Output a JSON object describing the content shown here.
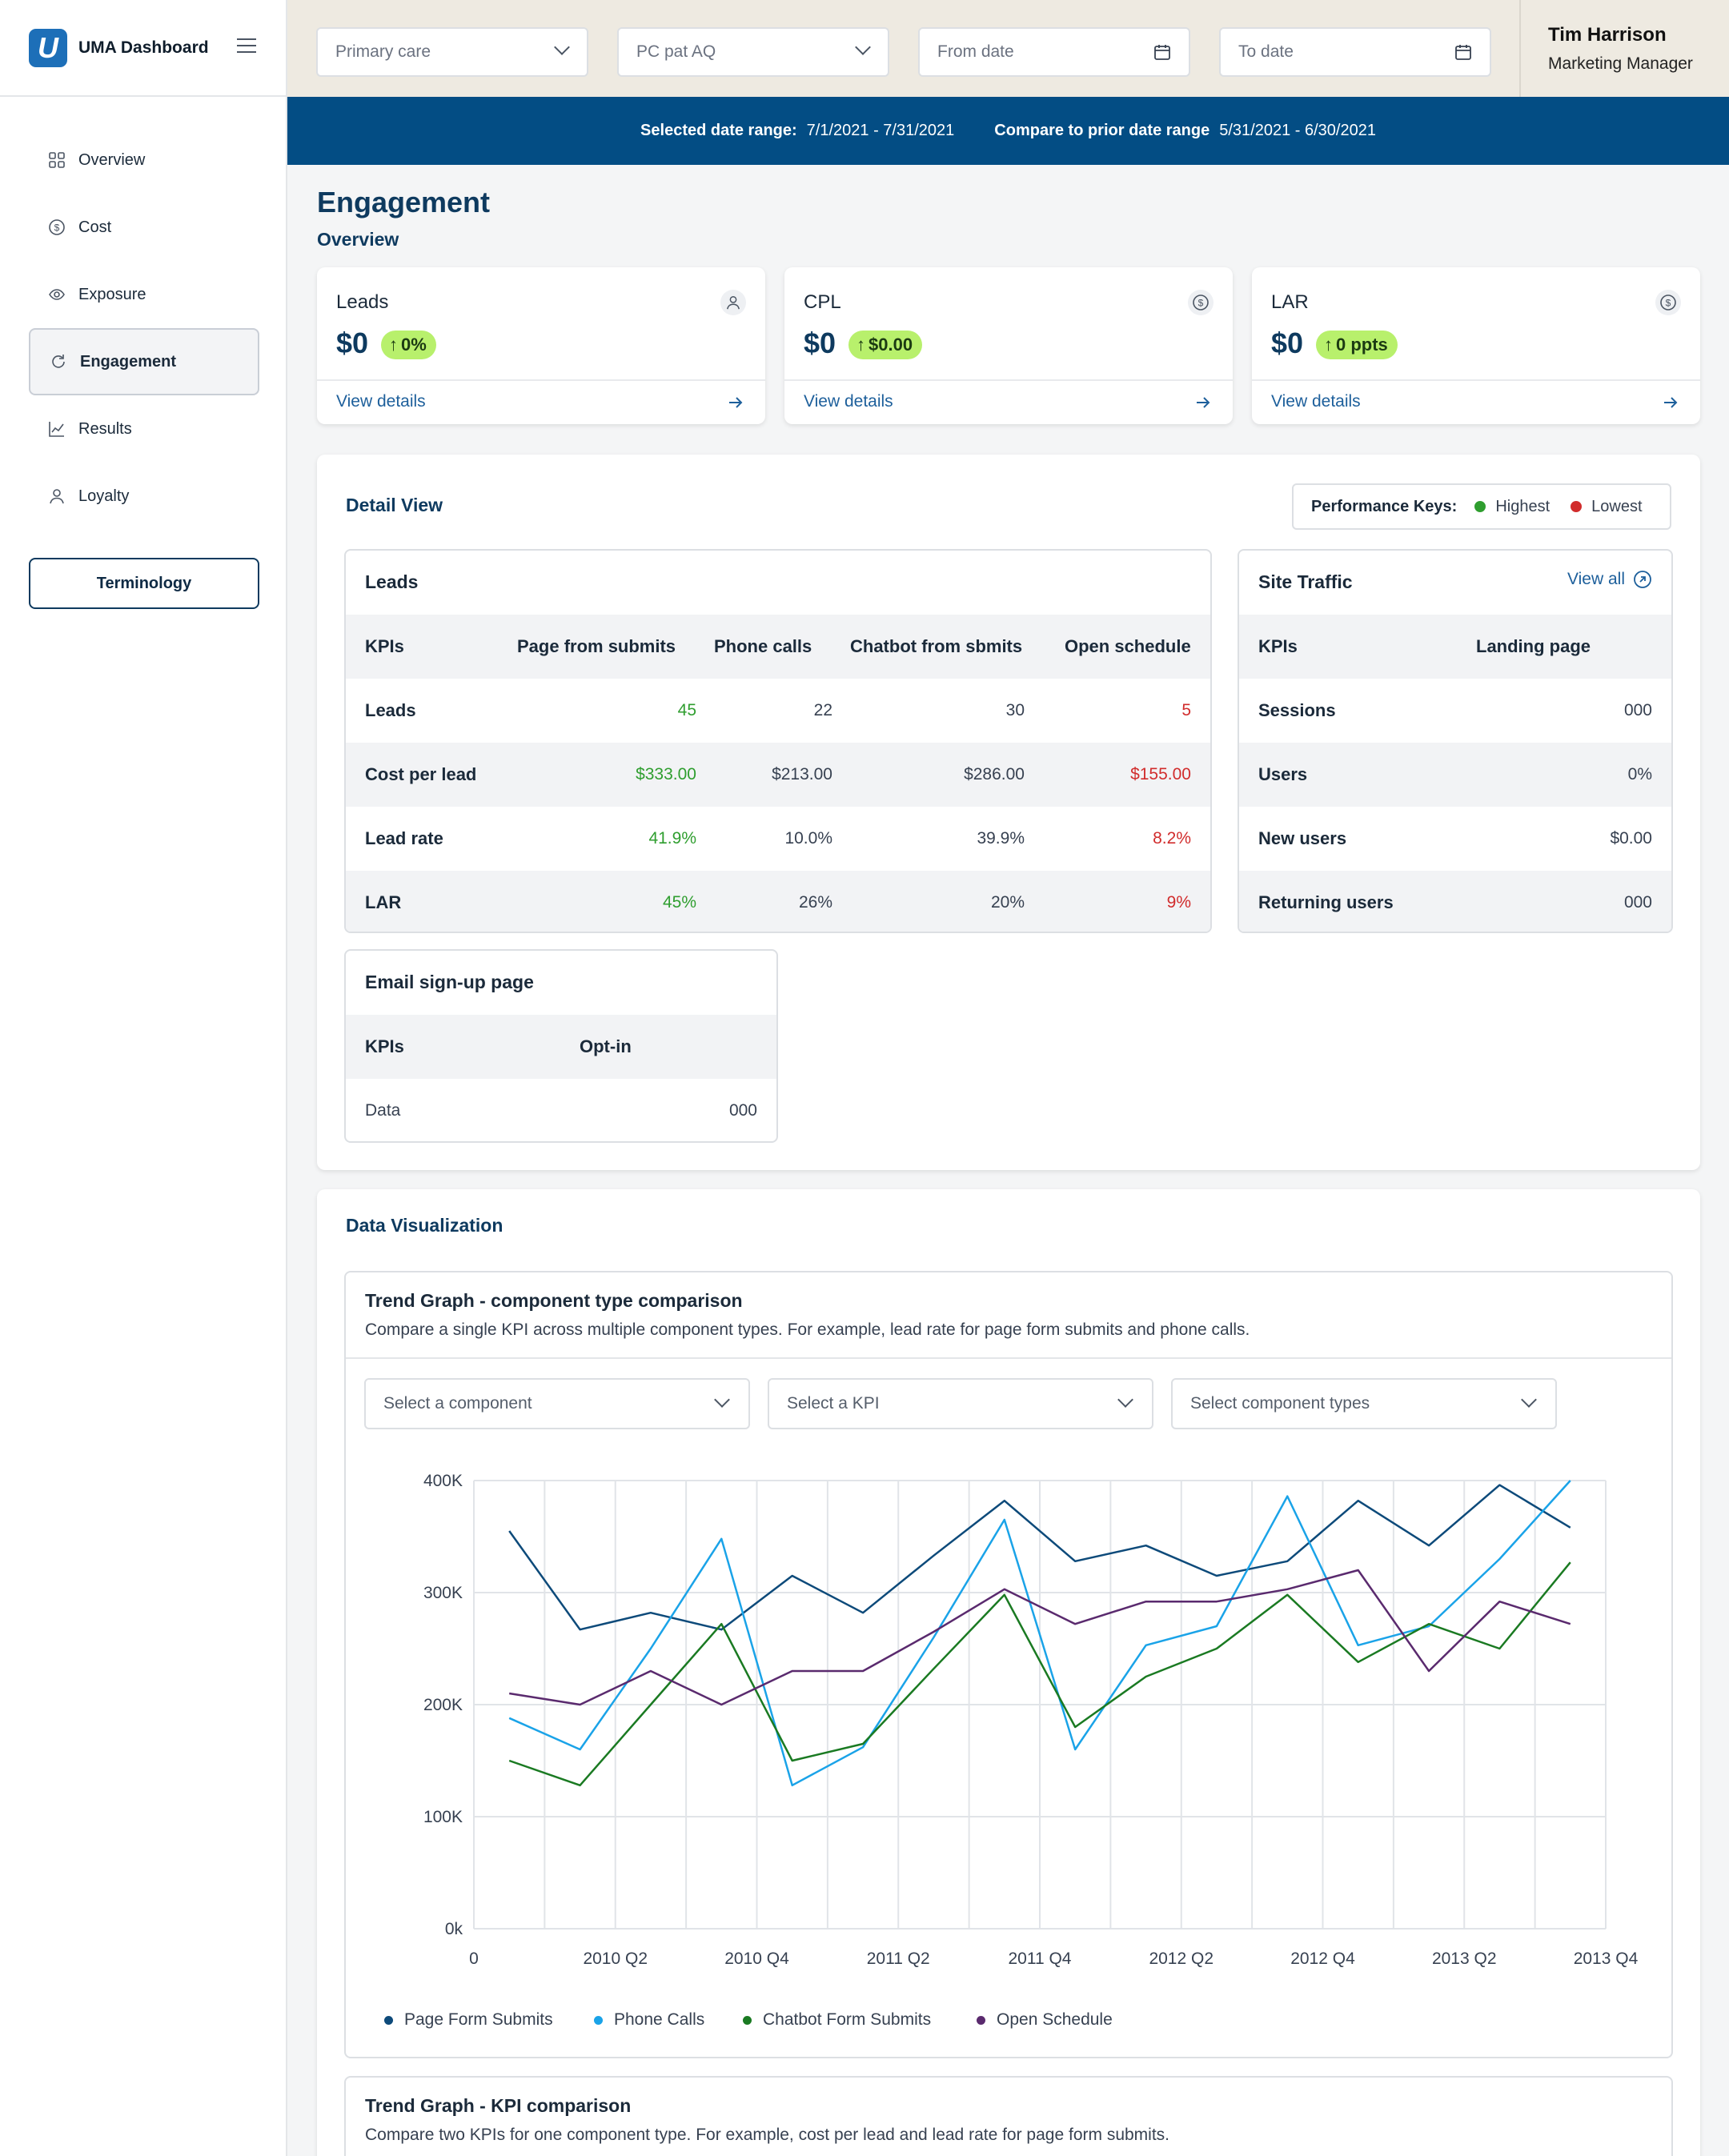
{
  "app": {
    "title": "UMA Dashboard",
    "logo_letter": "U"
  },
  "nav": {
    "items": [
      {
        "label": "Overview",
        "icon": "grid-icon"
      },
      {
        "label": "Cost",
        "icon": "dollar-circle-icon"
      },
      {
        "label": "Exposure",
        "icon": "eye-icon"
      },
      {
        "label": "Engagement",
        "icon": "refresh-icon",
        "active": true
      },
      {
        "label": "Results",
        "icon": "chart-icon"
      },
      {
        "label": "Loyalty",
        "icon": "user-icon"
      }
    ],
    "terminology_label": "Terminology"
  },
  "filters": {
    "primary": "Primary care",
    "secondary": "PC pat AQ",
    "from_date": "From date",
    "to_date": "To date"
  },
  "user": {
    "name": "Tim Harrison",
    "role": "Marketing Manager"
  },
  "range": {
    "selected_label": "Selected date range:",
    "selected_value": "7/1/2021 - 7/31/2021",
    "compare_label": "Compare to prior date range",
    "compare_value": "5/31/2021 - 6/30/2021"
  },
  "page": {
    "title": "Engagement",
    "subtitle": "Overview"
  },
  "kpis": [
    {
      "label": "Leads",
      "value": "$0",
      "badge": "0%",
      "icon": "user-icon",
      "link": "View details"
    },
    {
      "label": "CPL",
      "value": "$0",
      "badge": "$0.00",
      "icon": "dollar-circle-icon",
      "link": "View details"
    },
    {
      "label": "LAR",
      "value": "$0",
      "badge": "0 ppts",
      "icon": "dollar-circle-icon",
      "link": "View details"
    }
  ],
  "detail": {
    "title": "Detail View",
    "perf_label": "Performance Keys:",
    "perf_high": "Highest",
    "perf_low": "Lowest",
    "colors": {
      "highest": "#2f9e2f",
      "lowest": "#d12c2c"
    },
    "leads": {
      "title": "Leads",
      "headers": [
        "KPIs",
        "Page from submits",
        "Phone calls",
        "Chatbot from sbmits",
        "Open schedule"
      ],
      "rows": [
        {
          "label": "Leads",
          "values": [
            "45",
            "22",
            "30",
            "5"
          ]
        },
        {
          "label": "Cost per lead",
          "values": [
            "$333.00",
            "$213.00",
            "$286.00",
            "$155.00"
          ]
        },
        {
          "label": "Lead rate",
          "values": [
            "41.9%",
            "10.0%",
            "39.9%",
            "8.2%"
          ]
        },
        {
          "label": "LAR",
          "values": [
            "45%",
            "26%",
            "20%",
            "9%"
          ]
        }
      ]
    },
    "traffic": {
      "title": "Site Traffic",
      "view_all": "View all",
      "headers": [
        "KPIs",
        "Landing page"
      ],
      "rows": [
        {
          "label": "Sessions",
          "value": "000"
        },
        {
          "label": "Users",
          "value": "0%"
        },
        {
          "label": "New users",
          "value": "$0.00"
        },
        {
          "label": "Returning users",
          "value": "000"
        }
      ]
    },
    "email": {
      "title": "Email sign-up page",
      "headers": [
        "KPIs",
        "Opt-in"
      ],
      "rows": [
        {
          "label": "Data",
          "value": "000"
        }
      ]
    }
  },
  "viz": {
    "title": "Data Visualization",
    "trend1": {
      "title": "Trend Graph - component type comparison",
      "desc": "Compare a single KPI across multiple component types. For example, lead rate for page form submits and phone calls.",
      "dropdowns": [
        "Select a component",
        "Select a KPI",
        "Select component types"
      ]
    },
    "trend2": {
      "title": "Trend Graph - KPI comparison",
      "desc": "Compare two KPIs for one component type. For example, cost per lead and lead rate for page form submits."
    }
  },
  "chart_data": {
    "type": "line",
    "x_tick_labels": [
      "0",
      "2010 Q2",
      "2010 Q4",
      "2011 Q2",
      "2011 Q4",
      "2012 Q2",
      "2012 Q4",
      "2013 Q2",
      "2013 Q4"
    ],
    "y_tick_labels": [
      "0k",
      "100K",
      "200K",
      "300K",
      "400K"
    ],
    "ylim": [
      0,
      400000
    ],
    "grid": true,
    "legend_position": "bottom-left",
    "x_points": 17,
    "series": [
      {
        "name": "Page Form Submits",
        "color": "#0d4a7a",
        "values": [
          355000,
          267000,
          282000,
          267000,
          315000,
          282000,
          333000,
          382000,
          328000,
          342000,
          315000,
          328000,
          382000,
          342000,
          396000,
          358000
        ]
      },
      {
        "name": "Phone Calls",
        "color": "#1aa3e8",
        "values": [
          188000,
          160000,
          250000,
          348000,
          128000,
          162000,
          260000,
          365000,
          160000,
          253000,
          270000,
          386000,
          253000,
          270000,
          330000,
          400000
        ]
      },
      {
        "name": "Chatbot Form Submits",
        "color": "#1a7a22",
        "values": [
          150000,
          128000,
          200000,
          272000,
          150000,
          165000,
          232000,
          298000,
          180000,
          225000,
          250000,
          298000,
          238000,
          272000,
          250000,
          327000
        ]
      },
      {
        "name": "Open Schedule",
        "color": "#5a2a6e",
        "values": [
          210000,
          200000,
          230000,
          200000,
          230000,
          230000,
          265000,
          303000,
          272000,
          292000,
          292000,
          303000,
          320000,
          230000,
          292000,
          272000
        ]
      }
    ]
  }
}
